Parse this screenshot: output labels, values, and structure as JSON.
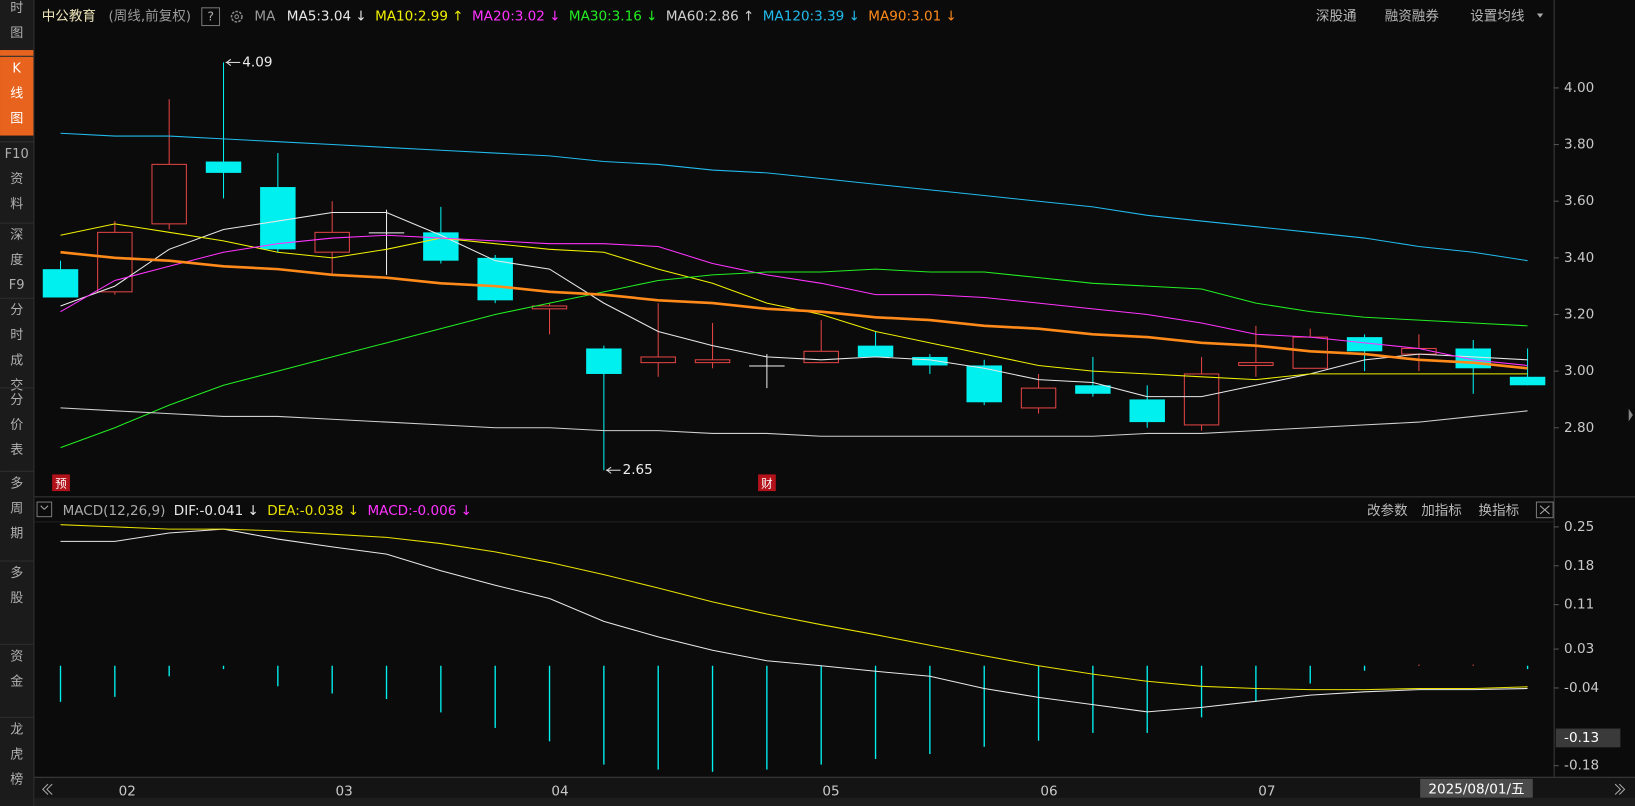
{
  "header": {
    "title": "中公教育",
    "period": "(周线,前复权)",
    "help": "?",
    "ma_label": "MA"
  },
  "toolbar": [
    "深股通",
    "融资融券",
    "设置均线"
  ],
  "sidebar": [
    [
      "时",
      "图"
    ],
    [
      "K",
      "线",
      "图"
    ],
    [
      "F10",
      "资",
      "料"
    ],
    [
      "深",
      "度",
      "F9"
    ],
    [
      "分",
      "时",
      "成",
      "交"
    ],
    [
      "分",
      "价",
      "表"
    ],
    [
      "多",
      "周",
      "期"
    ],
    [
      "多",
      "股"
    ],
    [
      "资",
      "金"
    ],
    [
      "龙",
      "虎",
      "榜"
    ]
  ],
  "markers": [
    "预",
    "财"
  ],
  "price": {
    "ylim": [
      2.58,
      4.2
    ],
    "yticks": [
      {
        "value": 4,
        "label": "4.00"
      },
      {
        "value": 3.8,
        "label": "3.80"
      },
      {
        "value": 3.6,
        "label": "3.60"
      },
      {
        "value": 3.4,
        "label": "3.40"
      },
      {
        "value": 3.2,
        "label": "3.20"
      },
      {
        "value": 3,
        "label": "3.00"
      },
      {
        "value": 2.8,
        "label": "2.80"
      }
    ],
    "candles": [
      {
        "open": 3.36,
        "high": 3.39,
        "low": 3.26,
        "close": 3.26
      },
      {
        "open": 3.28,
        "high": 3.53,
        "low": 3.27,
        "close": 3.49
      },
      {
        "open": 3.52,
        "high": 3.96,
        "low": 3.5,
        "close": 3.73
      },
      {
        "open": 3.74,
        "high": 4.09,
        "low": 3.61,
        "close": 3.7
      },
      {
        "open": 3.65,
        "high": 3.77,
        "low": 3.42,
        "close": 3.43
      },
      {
        "open": 3.42,
        "high": 3.6,
        "low": 3.34,
        "close": 3.49
      },
      {
        "open": 3.49,
        "high": 3.57,
        "low": 3.34,
        "close": 3.49
      },
      {
        "open": 3.49,
        "high": 3.58,
        "low": 3.38,
        "close": 3.39
      },
      {
        "open": 3.4,
        "high": 3.41,
        "low": 3.24,
        "close": 3.25
      },
      {
        "open": 3.22,
        "high": 3.24,
        "low": 3.13,
        "close": 3.23
      },
      {
        "open": 3.08,
        "high": 3.09,
        "low": 2.65,
        "close": 2.99
      },
      {
        "open": 3.03,
        "high": 3.24,
        "low": 2.98,
        "close": 3.05
      },
      {
        "open": 3.03,
        "high": 3.17,
        "low": 3.01,
        "close": 3.04
      },
      {
        "open": 3.02,
        "high": 3.06,
        "low": 2.94,
        "close": 3.02
      },
      {
        "open": 3.03,
        "high": 3.18,
        "low": 3.03,
        "close": 3.07
      },
      {
        "open": 3.09,
        "high": 3.14,
        "low": 3.05,
        "close": 3.05
      },
      {
        "open": 3.05,
        "high": 3.06,
        "low": 2.99,
        "close": 3.02
      },
      {
        "open": 3.02,
        "high": 3.04,
        "low": 2.88,
        "close": 2.89
      },
      {
        "open": 2.87,
        "high": 2.99,
        "low": 2.85,
        "close": 2.94
      },
      {
        "open": 2.95,
        "high": 3.05,
        "low": 2.91,
        "close": 2.92
      },
      {
        "open": 2.9,
        "high": 2.95,
        "low": 2.8,
        "close": 2.82
      },
      {
        "open": 2.81,
        "high": 3.05,
        "low": 2.79,
        "close": 2.99
      },
      {
        "open": 3.02,
        "high": 3.16,
        "low": 2.98,
        "close": 3.03
      },
      {
        "open": 3.01,
        "high": 3.15,
        "low": 3.01,
        "close": 3.12
      },
      {
        "open": 3.12,
        "high": 3.13,
        "low": 3.0,
        "close": 3.07
      },
      {
        "open": 3.06,
        "high": 3.13,
        "low": 3.0,
        "close": 3.08
      },
      {
        "open": 3.08,
        "high": 3.11,
        "low": 2.92,
        "close": 3.01
      },
      {
        "open": 2.98,
        "high": 3.08,
        "low": 2.95,
        "close": 2.95
      }
    ],
    "up_color": "#e04444",
    "down_color": "#00f0f0",
    "ma": [
      {
        "label": "MA5:3.04 ↓",
        "color": "#e8e8e8",
        "width": 1,
        "values": [
          3.23,
          3.3,
          3.43,
          3.5,
          3.53,
          3.56,
          3.56,
          3.48,
          3.39,
          3.36,
          3.24,
          3.14,
          3.09,
          3.05,
          3.04,
          3.05,
          3.04,
          3.01,
          2.97,
          2.96,
          2.91,
          2.91,
          2.95,
          2.99,
          3.04,
          3.06,
          3.05,
          3.04
        ]
      },
      {
        "label": "MA10:2.99 ↑",
        "color": "#f0f000",
        "width": 1,
        "values": [
          3.48,
          3.52,
          3.49,
          3.46,
          3.42,
          3.4,
          3.43,
          3.47,
          3.45,
          3.43,
          3.42,
          3.36,
          3.31,
          3.24,
          3.2,
          3.14,
          3.1,
          3.06,
          3.02,
          3.0,
          2.99,
          2.98,
          2.97,
          2.99,
          2.99,
          2.99,
          2.99,
          2.99
        ]
      },
      {
        "label": "MA20:3.02 ↓",
        "color": "#ff33ff",
        "width": 1,
        "values": [
          3.21,
          3.32,
          3.37,
          3.42,
          3.45,
          3.47,
          3.48,
          3.47,
          3.46,
          3.45,
          3.45,
          3.44,
          3.38,
          3.34,
          3.31,
          3.27,
          3.27,
          3.26,
          3.24,
          3.22,
          3.2,
          3.17,
          3.13,
          3.12,
          3.1,
          3.08,
          3.04,
          3.02
        ]
      },
      {
        "label": "MA30:3.16 ↓",
        "color": "#22ee22",
        "width": 1,
        "values": [
          2.73,
          2.8,
          2.88,
          2.95,
          3.0,
          3.05,
          3.1,
          3.15,
          3.2,
          3.24,
          3.28,
          3.32,
          3.34,
          3.35,
          3.35,
          3.36,
          3.35,
          3.35,
          3.33,
          3.31,
          3.3,
          3.29,
          3.24,
          3.21,
          3.19,
          3.18,
          3.17,
          3.16
        ]
      },
      {
        "label": "MA60:2.86 ↑",
        "color": "#d0d0d0",
        "width": 1,
        "values": [
          2.87,
          2.86,
          2.85,
          2.84,
          2.84,
          2.83,
          2.82,
          2.81,
          2.8,
          2.8,
          2.79,
          2.79,
          2.78,
          2.78,
          2.77,
          2.77,
          2.77,
          2.77,
          2.77,
          2.77,
          2.78,
          2.78,
          2.79,
          2.8,
          2.81,
          2.82,
          2.84,
          2.86
        ]
      },
      {
        "label": "MA120:3.39 ↓",
        "color": "#22bbee",
        "width": 1,
        "values": [
          3.84,
          3.83,
          3.83,
          3.82,
          3.81,
          3.8,
          3.79,
          3.78,
          3.77,
          3.76,
          3.74,
          3.73,
          3.71,
          3.7,
          3.68,
          3.66,
          3.64,
          3.62,
          3.6,
          3.58,
          3.55,
          3.53,
          3.51,
          3.49,
          3.47,
          3.44,
          3.42,
          3.39
        ]
      },
      {
        "label": "MA90:3.01 ↓",
        "color": "#ff8a1a",
        "width": 2.5,
        "values": [
          3.42,
          3.4,
          3.39,
          3.37,
          3.36,
          3.34,
          3.33,
          3.31,
          3.3,
          3.28,
          3.27,
          3.25,
          3.24,
          3.22,
          3.21,
          3.19,
          3.18,
          3.16,
          3.15,
          3.13,
          3.12,
          3.1,
          3.09,
          3.07,
          3.06,
          3.04,
          3.03,
          3.01
        ]
      }
    ]
  },
  "macd": {
    "header": "MACD(12,26,9)",
    "tools": [
      "改参数",
      "加指标",
      "换指标"
    ],
    "ylim": [
      -0.2,
      0.26
    ],
    "yticks": [
      0.25,
      0.18,
      0.11,
      0.03,
      -0.04,
      -0.18
    ],
    "cursor": {
      "value": -0.13,
      "label": "-0.13"
    },
    "lines": [
      {
        "label": "DIF:-0.041 ↓",
        "color": "#e8e8e8",
        "values": [
          0.224,
          0.224,
          0.239,
          0.246,
          0.228,
          0.214,
          0.201,
          0.171,
          0.145,
          0.121,
          0.08,
          0.052,
          0.028,
          0.009,
          0.0,
          -0.01,
          -0.019,
          -0.041,
          -0.057,
          -0.07,
          -0.083,
          -0.075,
          -0.064,
          -0.053,
          -0.047,
          -0.043,
          -0.043,
          -0.041
        ]
      },
      {
        "label": "DEA:-0.038 ↓",
        "color": "#e8e000",
        "values": [
          0.254,
          0.25,
          0.246,
          0.246,
          0.243,
          0.237,
          0.231,
          0.22,
          0.205,
          0.186,
          0.164,
          0.14,
          0.115,
          0.093,
          0.074,
          0.056,
          0.037,
          0.018,
          0.0,
          -0.015,
          -0.028,
          -0.037,
          -0.041,
          -0.043,
          -0.043,
          -0.041,
          -0.041,
          -0.038
        ]
      }
    ],
    "hist_label": "MACD:-0.006 ↓",
    "hist_color": "#ff33ff",
    "histogram": [
      -0.065,
      -0.056,
      -0.019,
      -0.006,
      -0.037,
      -0.05,
      -0.06,
      -0.084,
      -0.112,
      -0.136,
      -0.178,
      -0.187,
      -0.191,
      -0.187,
      -0.178,
      -0.168,
      -0.159,
      -0.146,
      -0.135,
      -0.121,
      -0.121,
      -0.093,
      -0.065,
      -0.032,
      -0.009,
      0.002,
      0.002,
      -0.006
    ]
  },
  "xaxis": {
    "labels": [
      "02",
      "03",
      "04",
      "05",
      "06",
      "07"
    ],
    "cursor": "2025/08/01/五"
  }
}
